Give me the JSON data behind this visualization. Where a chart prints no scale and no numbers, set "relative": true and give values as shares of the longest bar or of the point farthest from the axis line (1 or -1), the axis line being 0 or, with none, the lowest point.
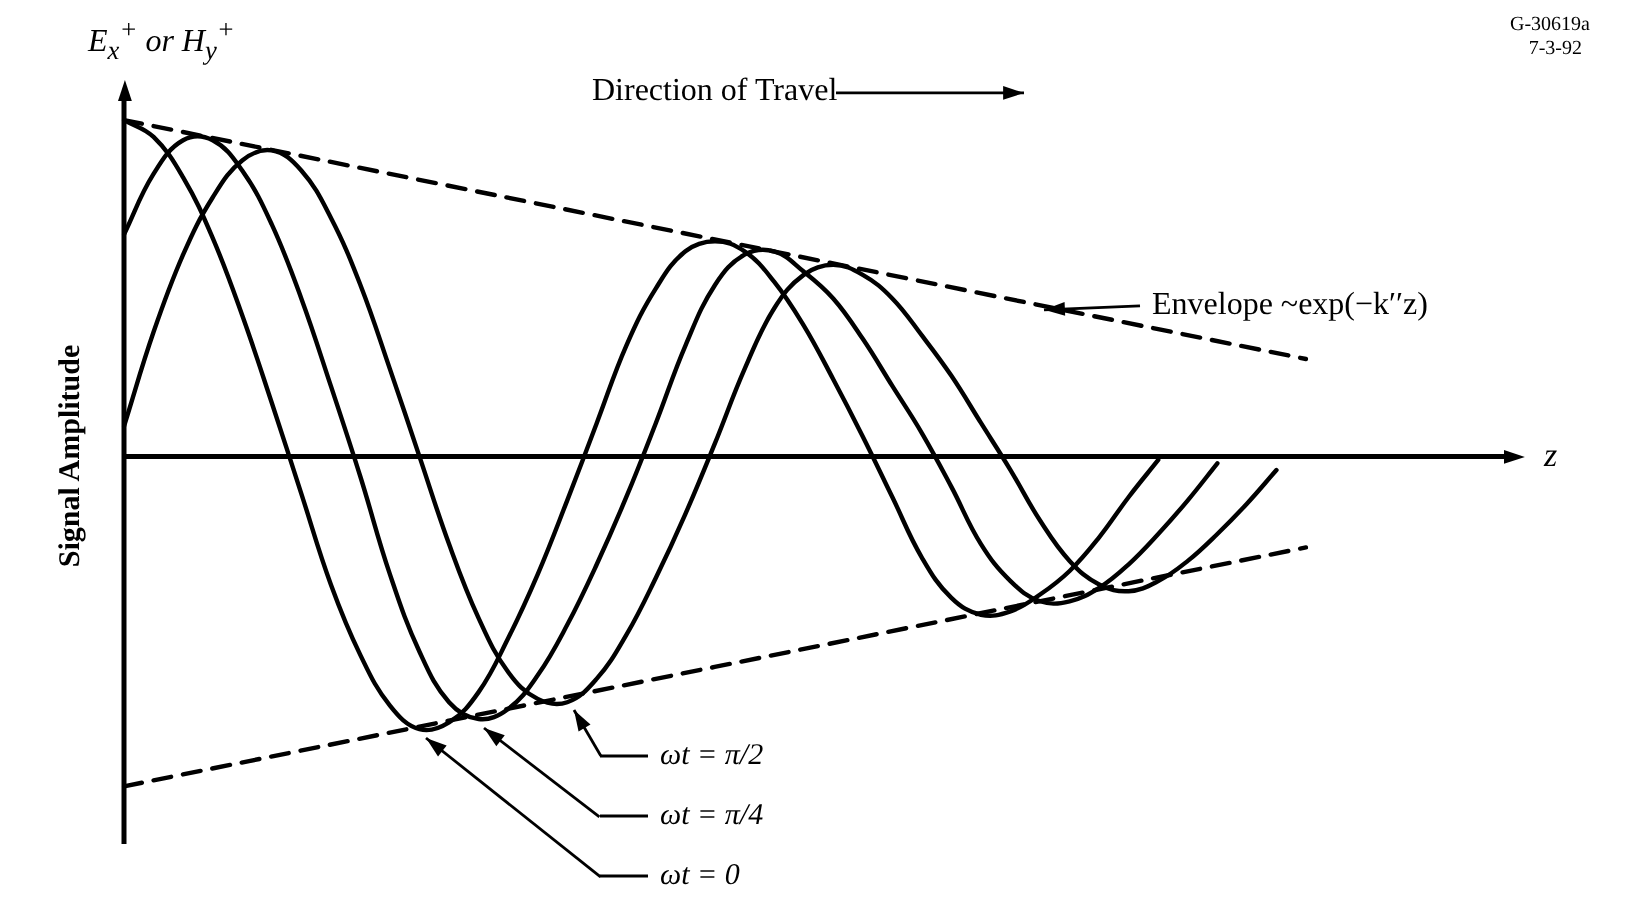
{
  "chart_data": {
    "type": "line",
    "relative": true,
    "ylabel": "Signal Amplitude",
    "legend": "bottom",
    "marker": "none",
    "line_style": "solid",
    "annotations": [
      "E$_{x}$$^{+}$ or H$_{y}$$^{+}$",
      "Direction of Travel",
      "Envelope ~exp(−k′′z)",
      "G-30619a",
      "7-3-92",
      "z"
    ],
    "categories": [
      null,
      null,
      null,
      null,
      null,
      null,
      null,
      null,
      null,
      null,
      null,
      null,
      null,
      null,
      null,
      null,
      null,
      null,
      null,
      null,
      null,
      null,
      null,
      null,
      null,
      null,
      null,
      null,
      null,
      null,
      null,
      null,
      null,
      null,
      null,
      null,
      null,
      null,
      null,
      null,
      null
    ],
    "series": [
      {
        "name": "ωt = 0",
        "color": "#000000",
        "values": [
          1.0,
          0.95,
          0.83,
          0.65,
          0.42,
          0.16,
          -0.11,
          -0.38,
          -0.59,
          -0.74,
          -0.81,
          -0.79,
          -0.7,
          -0.54,
          -0.35,
          -0.13,
          0.1,
          0.33,
          0.5,
          0.61,
          0.64,
          0.61,
          0.52,
          0.39,
          0.23,
          0.06,
          -0.12,
          -0.3,
          -0.42,
          -0.47,
          -0.46,
          -0.41,
          -0.34,
          -0.24,
          -0.12,
          -0.01,
          null,
          null,
          null,
          null,
          null
        ]
      },
      {
        "name": "ωt = π/4",
        "color": "#000000",
        "values": [
          0.66,
          0.84,
          0.94,
          0.94,
          0.85,
          0.69,
          0.47,
          0.21,
          -0.06,
          -0.35,
          -0.58,
          -0.73,
          -0.78,
          -0.75,
          -0.65,
          -0.5,
          -0.32,
          -0.12,
          0.1,
          0.33,
          0.51,
          0.6,
          0.61,
          0.55,
          0.47,
          0.35,
          0.21,
          0.07,
          -0.09,
          -0.26,
          -0.37,
          -0.43,
          -0.43,
          -0.39,
          -0.32,
          -0.23,
          -0.13,
          -0.02,
          null,
          null,
          null
        ]
      },
      {
        "name": "ωt = π/2",
        "color": "#000000",
        "values": [
          0.09,
          0.37,
          0.6,
          0.77,
          0.88,
          0.91,
          0.85,
          0.71,
          0.51,
          0.26,
          0.0,
          -0.26,
          -0.48,
          -0.64,
          -0.72,
          -0.73,
          -0.66,
          -0.53,
          -0.36,
          -0.17,
          0.04,
          0.26,
          0.44,
          0.54,
          0.57,
          0.54,
          0.47,
          0.36,
          0.24,
          0.1,
          -0.04,
          -0.19,
          -0.31,
          -0.38,
          -0.4,
          -0.37,
          -0.31,
          -0.23,
          -0.14,
          -0.04,
          null
        ]
      },
      {
        "color": "#000000",
        "line_style": "dashed",
        "values": [
          1.0,
          null,
          null,
          null,
          null,
          null,
          null,
          null,
          null,
          null,
          null,
          null,
          null,
          null,
          null,
          null,
          null,
          null,
          null,
          null,
          null,
          null,
          null,
          null,
          null,
          null,
          null,
          null,
          null,
          null,
          null,
          null,
          null,
          null,
          null,
          null,
          null,
          null,
          null,
          null,
          0.29
        ]
      },
      {
        "color": "#000000",
        "line_style": "dashed",
        "values": [
          -0.98,
          null,
          null,
          null,
          null,
          null,
          null,
          null,
          null,
          null,
          null,
          null,
          null,
          null,
          null,
          null,
          null,
          null,
          null,
          null,
          null,
          null,
          null,
          null,
          null,
          null,
          null,
          null,
          null,
          null,
          null,
          null,
          null,
          null,
          null,
          null,
          null,
          null,
          null,
          null,
          -0.27
        ]
      }
    ]
  }
}
